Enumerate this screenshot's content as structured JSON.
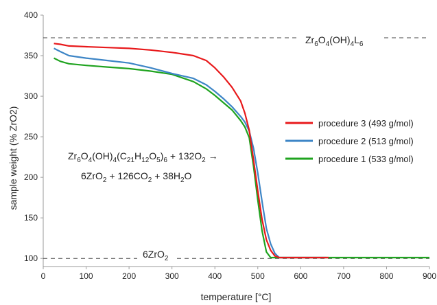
{
  "chart_data": {
    "type": "line",
    "xlabel": "temperature [°C]",
    "ylabel": "sample weight (% ZrO2)",
    "xlim": [
      0,
      900
    ],
    "ylim": [
      90,
      400
    ],
    "xticks": [
      "0",
      "100",
      "200",
      "300",
      "400",
      "500",
      "600",
      "700",
      "800",
      "900"
    ],
    "yticks": [
      "100",
      "150",
      "200",
      "250",
      "300",
      "350",
      "400"
    ],
    "grid": false,
    "legend_position": "right",
    "reference_lines": [
      {
        "y": 372,
        "label": "Zr6O4(OH)4L6"
      },
      {
        "y": 100,
        "label": "6ZrO2"
      }
    ],
    "annotation": {
      "line1": "Zr6O4(OH)4(C21H12O5)6 + 132O2 →",
      "line2": "6ZrO2 + 126CO2 + 38H2O"
    },
    "series": [
      {
        "name": "procedure 3 (493 g/mol)",
        "color": "#e8191b",
        "x": [
          25,
          40,
          60,
          100,
          150,
          200,
          250,
          300,
          350,
          380,
          400,
          420,
          440,
          460,
          470,
          480,
          490,
          500,
          510,
          520,
          530,
          540,
          550,
          600,
          665
        ],
        "y": [
          365,
          364,
          362,
          361,
          360,
          359,
          357,
          354,
          350,
          344,
          335,
          324,
          311,
          294,
          279,
          258,
          222,
          183,
          148,
          123,
          110,
          103,
          101,
          101,
          101
        ]
      },
      {
        "name": "procedure 2 (513 g/mol)",
        "color": "#3d85c6",
        "x": [
          25,
          40,
          60,
          100,
          150,
          200,
          250,
          300,
          350,
          380,
          400,
          420,
          440,
          460,
          470,
          480,
          490,
          500,
          510,
          520,
          530,
          540,
          550,
          600,
          660
        ],
        "y": [
          359,
          355,
          350,
          347,
          344,
          341,
          335,
          328,
          322,
          314,
          306,
          297,
          287,
          275,
          268,
          257,
          236,
          205,
          170,
          137,
          118,
          106,
          101,
          101,
          101
        ]
      },
      {
        "name": "procedure 1 (533 g/mol)",
        "color": "#1fa31f",
        "x": [
          25,
          40,
          60,
          100,
          150,
          200,
          250,
          300,
          350,
          380,
          400,
          420,
          440,
          460,
          470,
          480,
          490,
          500,
          510,
          520,
          530,
          600,
          700,
          800,
          900
        ],
        "y": [
          347,
          343,
          340,
          338,
          336,
          334,
          331,
          327,
          318,
          309,
          301,
          292,
          283,
          270,
          262,
          249,
          214,
          172,
          134,
          108,
          101,
          101,
          101,
          101,
          101
        ]
      }
    ]
  }
}
